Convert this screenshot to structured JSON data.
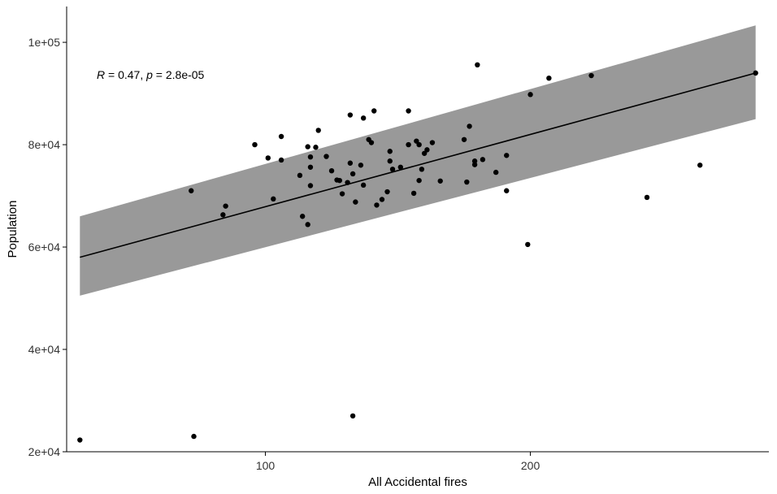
{
  "chart_data": {
    "type": "scatter",
    "xlabel": "All Accidental fires",
    "ylabel": "Population",
    "xlim": [
      25,
      290
    ],
    "ylim": [
      20000,
      107000
    ],
    "x_ticks": [
      100,
      200
    ],
    "x_tick_labels": [
      "100",
      "200"
    ],
    "y_ticks": [
      20000,
      40000,
      60000,
      80000,
      100000
    ],
    "y_tick_labels": [
      "2e+04",
      "4e+04",
      "6e+04",
      "8e+04",
      "1e+05"
    ],
    "grid": false,
    "annotation": {
      "r_label": "R",
      "r_text": " = 0.47, ",
      "p_label": "p",
      "p_text": " = 2.8e-05",
      "x": 30,
      "y": 93000
    },
    "regression": {
      "x": [
        30,
        285
      ],
      "y": [
        58000,
        94000
      ],
      "ci_lower": [
        50500,
        85000
      ],
      "ci_upper": [
        66000,
        103300
      ]
    },
    "points": [
      {
        "x": 30,
        "y": 22300
      },
      {
        "x": 72,
        "y": 71000
      },
      {
        "x": 73,
        "y": 23000
      },
      {
        "x": 84,
        "y": 66300
      },
      {
        "x": 85,
        "y": 68000
      },
      {
        "x": 96,
        "y": 80000
      },
      {
        "x": 101,
        "y": 77400
      },
      {
        "x": 103,
        "y": 69400
      },
      {
        "x": 106,
        "y": 81600
      },
      {
        "x": 106,
        "y": 77000
      },
      {
        "x": 113,
        "y": 74000
      },
      {
        "x": 114,
        "y": 66000
      },
      {
        "x": 116,
        "y": 79600
      },
      {
        "x": 116,
        "y": 64400
      },
      {
        "x": 117,
        "y": 77600
      },
      {
        "x": 117,
        "y": 75600
      },
      {
        "x": 117,
        "y": 72000
      },
      {
        "x": 119,
        "y": 79500
      },
      {
        "x": 120,
        "y": 82800
      },
      {
        "x": 123,
        "y": 77700
      },
      {
        "x": 125,
        "y": 74900
      },
      {
        "x": 127,
        "y": 73100
      },
      {
        "x": 128,
        "y": 73000
      },
      {
        "x": 129,
        "y": 70400
      },
      {
        "x": 131,
        "y": 72600
      },
      {
        "x": 132,
        "y": 85800
      },
      {
        "x": 132,
        "y": 76400
      },
      {
        "x": 133,
        "y": 74300
      },
      {
        "x": 133,
        "y": 27000
      },
      {
        "x": 134,
        "y": 68800
      },
      {
        "x": 136,
        "y": 76000
      },
      {
        "x": 137,
        "y": 85200
      },
      {
        "x": 137,
        "y": 72100
      },
      {
        "x": 139,
        "y": 81000
      },
      {
        "x": 140,
        "y": 80400
      },
      {
        "x": 141,
        "y": 86600
      },
      {
        "x": 142,
        "y": 68200
      },
      {
        "x": 144,
        "y": 69300
      },
      {
        "x": 146,
        "y": 70800
      },
      {
        "x": 147,
        "y": 78700
      },
      {
        "x": 147,
        "y": 76800
      },
      {
        "x": 148,
        "y": 75200
      },
      {
        "x": 151,
        "y": 75600
      },
      {
        "x": 154,
        "y": 86600
      },
      {
        "x": 154,
        "y": 80000
      },
      {
        "x": 156,
        "y": 70500
      },
      {
        "x": 157,
        "y": 80700
      },
      {
        "x": 158,
        "y": 80000
      },
      {
        "x": 158,
        "y": 73000
      },
      {
        "x": 159,
        "y": 75200
      },
      {
        "x": 160,
        "y": 78300
      },
      {
        "x": 161,
        "y": 79000
      },
      {
        "x": 163,
        "y": 80400
      },
      {
        "x": 166,
        "y": 72900
      },
      {
        "x": 175,
        "y": 81000
      },
      {
        "x": 176,
        "y": 72700
      },
      {
        "x": 177,
        "y": 83600
      },
      {
        "x": 179,
        "y": 76100
      },
      {
        "x": 179,
        "y": 76800
      },
      {
        "x": 180,
        "y": 95600
      },
      {
        "x": 182,
        "y": 77100
      },
      {
        "x": 187,
        "y": 74600
      },
      {
        "x": 191,
        "y": 77900
      },
      {
        "x": 191,
        "y": 71000
      },
      {
        "x": 199,
        "y": 60500
      },
      {
        "x": 200,
        "y": 89800
      },
      {
        "x": 207,
        "y": 93000
      },
      {
        "x": 223,
        "y": 93500
      },
      {
        "x": 244,
        "y": 69700
      },
      {
        "x": 264,
        "y": 76000
      },
      {
        "x": 285,
        "y": 94000
      }
    ]
  }
}
